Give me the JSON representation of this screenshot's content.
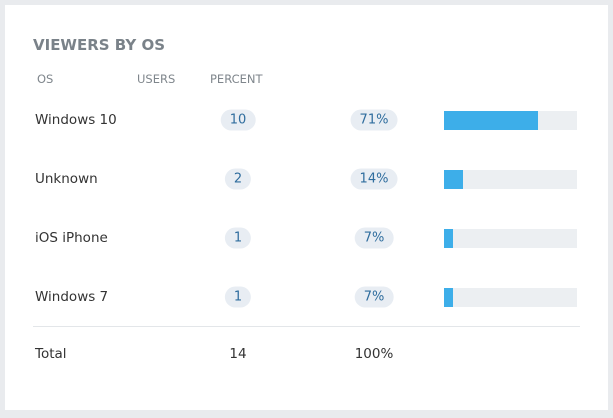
{
  "title": "VIEWERS BY OS",
  "table": {
    "headers": [
      "OS",
      "USERS",
      "PERCENT"
    ],
    "rows": [
      {
        "os": "Windows 10",
        "users": 10,
        "percent": 71,
        "percent_label": "71%"
      },
      {
        "os": "Unknown",
        "users": 2,
        "percent": 14,
        "percent_label": "14%"
      },
      {
        "os": "iOS iPhone",
        "users": 1,
        "percent": 7,
        "percent_label": "7%"
      },
      {
        "os": "Windows 7",
        "users": 1,
        "percent": 7,
        "percent_label": "7%"
      }
    ],
    "total": {
      "label": "Total",
      "users": 14,
      "percent_label": "100%"
    },
    "xlim": [
      0,
      100
    ],
    "bar_color": "#3daee9",
    "track_color": "#eceff2"
  }
}
